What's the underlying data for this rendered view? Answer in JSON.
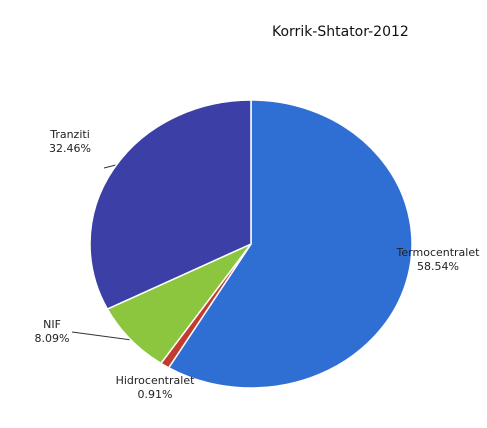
{
  "chart_data": {
    "type": "pie",
    "title": "Korrik-Shtator-2012",
    "categories": [
      "Termocentralet",
      "Hidrocentralet",
      "NIF",
      "Tranziti"
    ],
    "values": [
      58.54,
      0.91,
      8.09,
      32.46
    ],
    "value_labels": [
      "58.54%",
      "0.91%",
      "8.09%",
      "32.46%"
    ],
    "colors": [
      "#2f6fd3",
      "#c23b2e",
      "#8cc63f",
      "#3b3fa6"
    ]
  }
}
